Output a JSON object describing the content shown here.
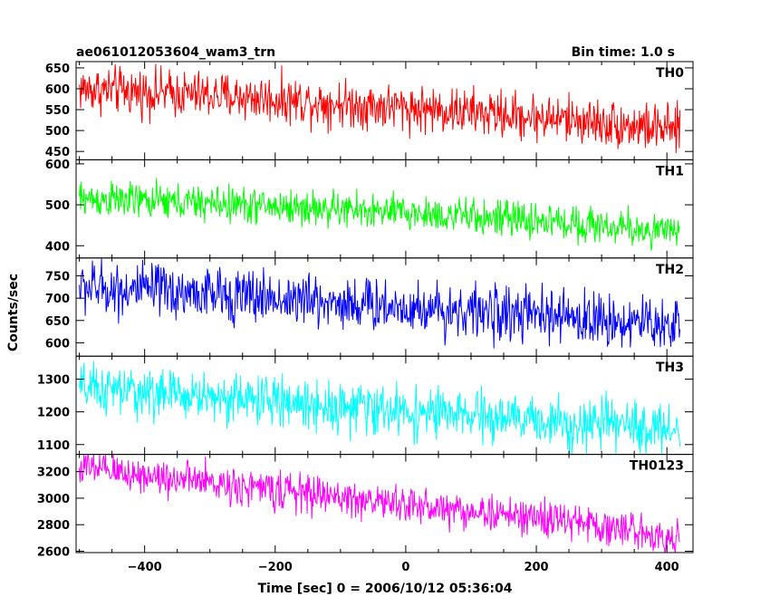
{
  "header": {
    "title": "ae061012053604_wam3_trn",
    "bin_time": "Bin time: 1.0 s"
  },
  "chart_data": {
    "type": "line",
    "xlabel": "Time [sec] 0 = 2006/10/12 05:36:04",
    "ylabel": "Counts/sec",
    "xlim": [
      -505,
      440
    ],
    "x_ticks": [
      -400,
      -200,
      0,
      200,
      400
    ],
    "x_range": [
      -500,
      420
    ],
    "grid": false,
    "panels": [
      {
        "name": "TH0",
        "color": "#ff0000",
        "ylim": [
          430,
          665
        ],
        "y_ticks": [
          450,
          500,
          550,
          600,
          650
        ],
        "trend": [
          [
            -500,
            600
          ],
          [
            -250,
            580
          ],
          [
            0,
            555
          ],
          [
            260,
            525
          ],
          [
            420,
            500
          ]
        ],
        "noise": 28
      },
      {
        "name": "TH1",
        "color": "#00ff00",
        "ylim": [
          370,
          610
        ],
        "y_ticks": [
          400,
          500,
          600
        ],
        "trend": [
          [
            -500,
            515
          ],
          [
            -250,
            500
          ],
          [
            0,
            480
          ],
          [
            260,
            455
          ],
          [
            420,
            430
          ]
        ],
        "noise": 22
      },
      {
        "name": "TH2",
        "color": "#0000ff",
        "ylim": [
          570,
          790
        ],
        "y_ticks": [
          600,
          650,
          700,
          750
        ],
        "trend": [
          [
            -500,
            725
          ],
          [
            -250,
            705
          ],
          [
            0,
            680
          ],
          [
            260,
            655
          ],
          [
            420,
            640
          ]
        ],
        "noise": 30
      },
      {
        "name": "TH3",
        "color": "#00ffff",
        "ylim": [
          1070,
          1370
        ],
        "y_ticks": [
          1100,
          1200,
          1300
        ],
        "trend": [
          [
            -500,
            1270
          ],
          [
            -250,
            1240
          ],
          [
            0,
            1200
          ],
          [
            260,
            1165
          ],
          [
            420,
            1145
          ]
        ],
        "noise": 38
      },
      {
        "name": "TH0123",
        "color": "#ff00ff",
        "ylim": [
          2590,
          3330
        ],
        "y_ticks": [
          2600,
          2800,
          3000,
          3200
        ],
        "trend": [
          [
            -500,
            3230
          ],
          [
            -250,
            3090
          ],
          [
            0,
            2950
          ],
          [
            260,
            2820
          ],
          [
            420,
            2700
          ]
        ],
        "noise": 70
      }
    ]
  }
}
